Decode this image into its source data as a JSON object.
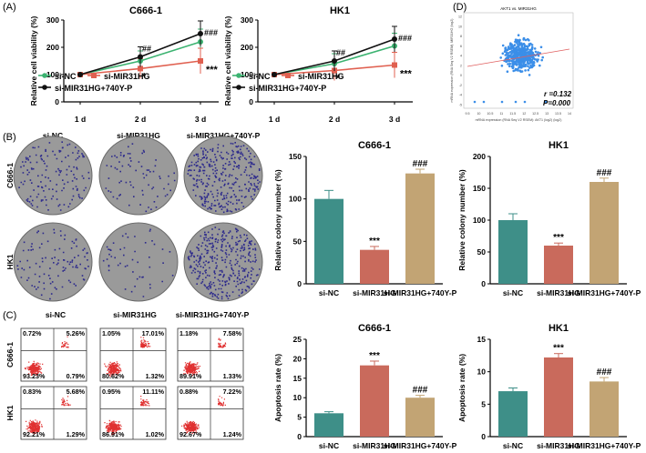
{
  "colors": {
    "si_nc": "#3cb371",
    "si_mir": "#e06050",
    "si_mir_740": "#111111",
    "bar_nc": "#3e8f88",
    "bar_mir": "#c96a5c",
    "bar_740": "#c2a474",
    "scatter": "#3b8ee8",
    "fit": "#e06060",
    "dish": "#9a9a9a",
    "colony": "#2d2a8c",
    "flow": "#e03030"
  },
  "panel_labels": {
    "a": "(A)",
    "b": "(B)",
    "c": "(C)",
    "d": "(D)"
  },
  "viability": [
    {
      "title": "C666-1",
      "ylabel": "Relative cell viability (%)",
      "yticks": [
        "0",
        "100",
        "200",
        "300"
      ],
      "ylim": [
        0,
        300
      ],
      "xticks": [
        "1 d",
        "2 d",
        "3 d"
      ],
      "series": [
        {
          "name": "si-NC",
          "values": [
            100,
            150,
            220
          ]
        },
        {
          "name": "si-MIR31HG",
          "values": [
            100,
            122,
            150
          ]
        },
        {
          "name": "si-MIR31HG+740Y-P",
          "values": [
            100,
            165,
            250
          ]
        }
      ],
      "annotations": {
        "d2_hash": "##",
        "d3_hash": "###",
        "d2_star": "*",
        "d3_star": "***"
      }
    },
    {
      "title": "HK1",
      "ylabel": "Relative cell viability (%)",
      "yticks": [
        "0",
        "100",
        "200",
        "300"
      ],
      "ylim": [
        0,
        300
      ],
      "xticks": [
        "1 d",
        "2 d",
        "3 d"
      ],
      "series": [
        {
          "name": "si-NC",
          "values": [
            100,
            140,
            205
          ]
        },
        {
          "name": "si-MIR31HG",
          "values": [
            100,
            115,
            135
          ]
        },
        {
          "name": "si-MIR31HG+740Y-P",
          "values": [
            100,
            150,
            230
          ]
        }
      ],
      "annotations": {
        "d2_hash": "##",
        "d3_hash": "###",
        "d2_star": "*",
        "d3_star": "***"
      }
    }
  ],
  "scatter": {
    "title": "AKT1 vs. MIR31HG",
    "ylabel": "mRNA expression (RNA Seq V2 RSEM): MIR31HG (log2)",
    "xlabel": "mRNA expression (RNA Seq V2 RSEM): AKT1 (log2) (log2)",
    "xticks": [
      "9.5",
      "10",
      "10.5",
      "11",
      "11.5",
      "12",
      "12.5",
      "13",
      "13.5",
      "14"
    ],
    "yticks": [
      "-5",
      "-4",
      "-2",
      "0",
      "2",
      "4",
      "6",
      "8",
      "10",
      "12"
    ],
    "r_text": "r =0.132",
    "p_text": "P=0.000"
  },
  "colony": {
    "col_headers": [
      "si-NC",
      "si-MIR31HG",
      "si-MIR31HG+740Y-P"
    ],
    "row_labels": [
      "C666-1",
      "HK1"
    ],
    "densities": [
      [
        0.35,
        0.18,
        0.8
      ],
      [
        0.25,
        0.12,
        0.85
      ]
    ]
  },
  "colony_bars": [
    {
      "title": "C666-1",
      "ylabel": "Relative colony number (%)",
      "yticks": [
        "0",
        "50",
        "100",
        "150"
      ],
      "ylim": [
        0,
        150
      ],
      "categories": [
        "si-NC",
        "si-MIR31HG",
        "si-MIR31HG+740Y-P"
      ],
      "values": [
        100,
        40,
        130
      ],
      "errors": [
        10,
        4,
        5
      ],
      "annots": [
        "",
        "***",
        "###"
      ]
    },
    {
      "title": "HK1",
      "ylabel": "Relative colony number (%)",
      "yticks": [
        "0",
        "50",
        "100",
        "150",
        "200"
      ],
      "ylim": [
        0,
        200
      ],
      "categories": [
        "si-NC",
        "si-MIR31HG",
        "si-MIR31HG+740Y-P"
      ],
      "values": [
        100,
        60,
        160
      ],
      "errors": [
        10,
        4,
        6
      ],
      "annots": [
        "",
        "***",
        "###"
      ]
    }
  ],
  "flow": {
    "col_headers": [
      "si-NC",
      "si-MIR31HG",
      "si-MIR31HG+740Y-P"
    ],
    "row_labels": [
      "C666-1",
      "HK1"
    ],
    "quadrants": [
      [
        {
          "ul": "0.72%",
          "ur": "5.26%",
          "ll": "93.23%",
          "lr": "0.79%"
        },
        {
          "ul": "1.05%",
          "ur": "17.01%",
          "ll": "80.62%",
          "lr": "1.32%"
        },
        {
          "ul": "1.18%",
          "ur": "7.58%",
          "ll": "89.91%",
          "lr": "1.33%"
        }
      ],
      [
        {
          "ul": "0.83%",
          "ur": "5.68%",
          "ll": "92.21%",
          "lr": "1.29%"
        },
        {
          "ul": "0.95%",
          "ur": "11.11%",
          "ll": "86.91%",
          "lr": "1.02%"
        },
        {
          "ul": "0.88%",
          "ur": "7.22%",
          "ll": "92.67%",
          "lr": "1.24%"
        }
      ]
    ]
  },
  "apoptosis_bars": [
    {
      "title": "C666-1",
      "ylabel": "Apoptosis rate (%)",
      "yticks": [
        "0",
        "5",
        "10",
        "15",
        "20",
        "25"
      ],
      "ylim": [
        0,
        25
      ],
      "categories": [
        "si-NC",
        "si-MIR31HG",
        "si-MIR31HG+740Y-P"
      ],
      "values": [
        6,
        18.3,
        10
      ],
      "errors": [
        0.4,
        1.1,
        0.6
      ],
      "annots": [
        "",
        "***",
        "###"
      ]
    },
    {
      "title": "HK1",
      "ylabel": "Apoptosis rate (%)",
      "yticks": [
        "0",
        "5",
        "10",
        "15"
      ],
      "ylim": [
        0,
        15
      ],
      "categories": [
        "si-NC",
        "si-MIR31HG",
        "si-MIR31HG+740Y-P"
      ],
      "values": [
        7,
        12.2,
        8.5
      ],
      "errors": [
        0.5,
        0.6,
        0.6
      ],
      "annots": [
        "",
        "***",
        "###"
      ]
    }
  ],
  "chart_data": [
    {
      "type": "line",
      "title": "C666-1",
      "categories": [
        "1 d",
        "2 d",
        "3 d"
      ],
      "ylabel": "Relative cell viability (%)",
      "ylim": [
        0,
        300
      ],
      "series": [
        {
          "name": "si-NC",
          "values": [
            100,
            150,
            220
          ]
        },
        {
          "name": "si-MIR31HG",
          "values": [
            100,
            122,
            150
          ]
        },
        {
          "name": "si-MIR31HG+740Y-P",
          "values": [
            100,
            165,
            250
          ]
        }
      ]
    },
    {
      "type": "line",
      "title": "HK1",
      "categories": [
        "1 d",
        "2 d",
        "3 d"
      ],
      "ylabel": "Relative cell viability (%)",
      "ylim": [
        0,
        300
      ],
      "series": [
        {
          "name": "si-NC",
          "values": [
            100,
            140,
            205
          ]
        },
        {
          "name": "si-MIR31HG",
          "values": [
            100,
            115,
            135
          ]
        },
        {
          "name": "si-MIR31HG+740Y-P",
          "values": [
            100,
            150,
            230
          ]
        }
      ]
    },
    {
      "type": "scatter",
      "title": "AKT1 vs. MIR31HG",
      "annotations": [
        "r =0.132",
        "P=0.000"
      ]
    },
    {
      "type": "bar",
      "title": "C666-1",
      "categories": [
        "si-NC",
        "si-MIR31HG",
        "si-MIR31HG+740Y-P"
      ],
      "values": [
        100,
        40,
        130
      ],
      "ylabel": "Relative colony number (%)",
      "ylim": [
        0,
        150
      ]
    },
    {
      "type": "bar",
      "title": "HK1",
      "categories": [
        "si-NC",
        "si-MIR31HG",
        "si-MIR31HG+740Y-P"
      ],
      "values": [
        100,
        60,
        160
      ],
      "ylabel": "Relative colony number (%)",
      "ylim": [
        0,
        200
      ]
    },
    {
      "type": "bar",
      "title": "C666-1",
      "categories": [
        "si-NC",
        "si-MIR31HG",
        "si-MIR31HG+740Y-P"
      ],
      "values": [
        6,
        18.3,
        10
      ],
      "ylabel": "Apoptosis rate (%)",
      "ylim": [
        0,
        25
      ]
    },
    {
      "type": "bar",
      "title": "HK1",
      "categories": [
        "si-NC",
        "si-MIR31HG",
        "si-MIR31HG+740Y-P"
      ],
      "values": [
        7,
        12.2,
        8.5
      ],
      "ylabel": "Apoptosis rate (%)",
      "ylim": [
        0,
        15
      ]
    }
  ]
}
